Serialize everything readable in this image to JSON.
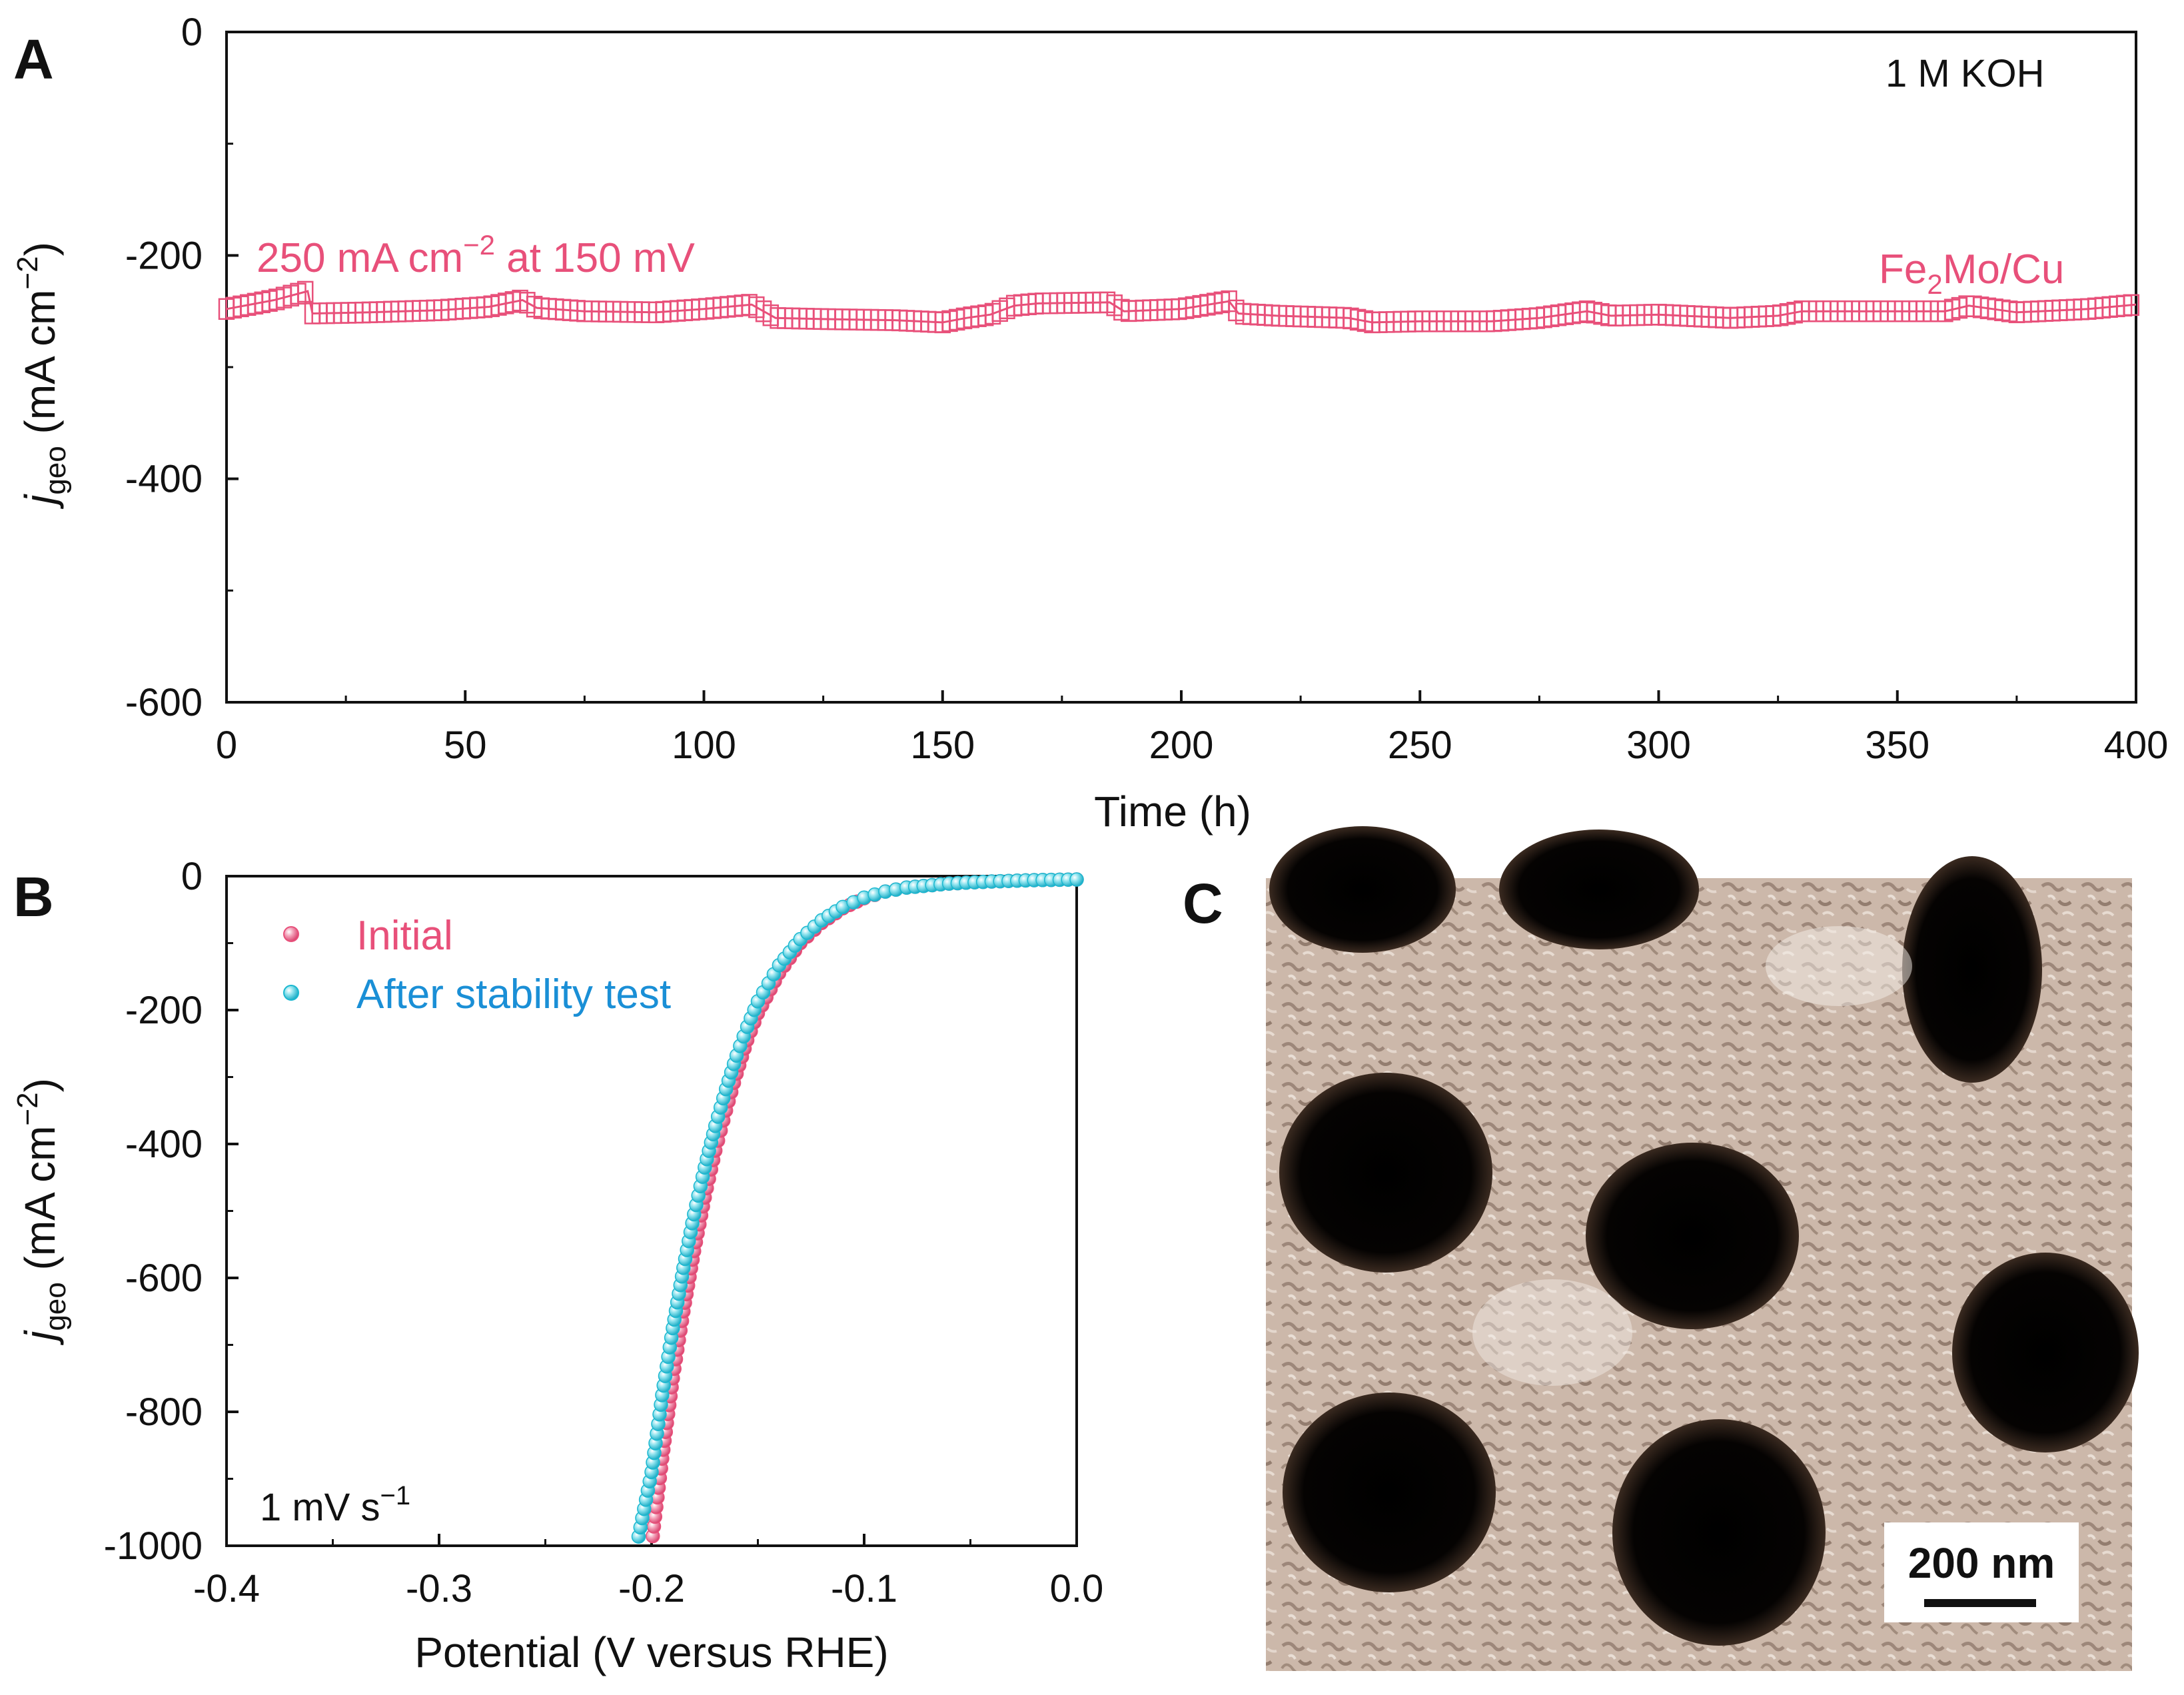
{
  "colors": {
    "pink": "#e8507a",
    "cyan": "#1bb8d0",
    "blue": "#1a8fd6",
    "axis": "#111111"
  },
  "chart_data": [
    {
      "panel": "A",
      "type": "line",
      "xlabel": "Time (h)",
      "ylabel_main": "j",
      "ylabel_sub": "geo",
      "ylabel_unit": " (mA cm",
      "ylabel_exp": "−2",
      "ylabel_close": ")",
      "xlim": [
        0,
        400
      ],
      "ylim": [
        -600,
        0
      ],
      "xticks": [
        "0",
        "50",
        "100",
        "150",
        "200",
        "250",
        "300",
        "350",
        "400"
      ],
      "yticks": [
        "0",
        "-200",
        "-400",
        "-600"
      ],
      "electrolyte": "1 M KOH",
      "condition_a": "250 mA cm",
      "condition_exp": "−2",
      "condition_b": " at 150 mV",
      "series_a": "Fe",
      "series_sub": "2",
      "series_b": "Mo/Cu",
      "series": [
        {
          "name": "Fe2Mo/Cu",
          "marker": "open-square",
          "x": [
            0,
            10,
            17,
            18,
            30,
            45,
            55,
            62,
            65,
            75,
            90,
            100,
            110,
            115,
            125,
            140,
            150,
            155,
            160,
            165,
            170,
            185,
            188,
            200,
            210,
            212,
            220,
            235,
            240,
            250,
            265,
            275,
            285,
            290,
            300,
            315,
            325,
            330,
            345,
            360,
            365,
            375,
            390,
            400
          ],
          "y": [
            -248,
            -240,
            -232,
            -252,
            -251,
            -249,
            -246,
            -240,
            -247,
            -250,
            -251,
            -248,
            -244,
            -256,
            -257,
            -258,
            -260,
            -256,
            -253,
            -245,
            -243,
            -242,
            -250,
            -248,
            -241,
            -252,
            -254,
            -256,
            -260,
            -259,
            -259,
            -256,
            -250,
            -254,
            -253,
            -256,
            -254,
            -250,
            -250,
            -250,
            -245,
            -251,
            -248,
            -244
          ]
        }
      ]
    },
    {
      "panel": "B",
      "type": "scatter",
      "xlabel": "Potential (V versus RHE)",
      "ylabel_main": "j",
      "ylabel_sub": "geo",
      "ylabel_unit": " (mA cm",
      "ylabel_exp": "−2",
      "ylabel_close": ")",
      "xlim": [
        -0.4,
        0.0
      ],
      "ylim": [
        -1000,
        0
      ],
      "xticks": [
        "-0.4",
        "-0.3",
        "-0.2",
        "-0.1",
        "0.0"
      ],
      "yticks": [
        "0",
        "-200",
        "-400",
        "-600",
        "-800",
        "-1000"
      ],
      "scan_a": "1 mV s",
      "scan_exp": "−1",
      "series": [
        {
          "name": "Initial",
          "x": [
            -0.2,
            -0.195,
            -0.19,
            -0.185,
            -0.18,
            -0.175,
            -0.17,
            -0.165,
            -0.16,
            -0.155,
            -0.15,
            -0.14,
            -0.13,
            -0.12,
            -0.11,
            -0.1,
            -0.09,
            -0.08,
            -0.06,
            -0.04,
            -0.02,
            0.0
          ],
          "y": [
            -1000,
            -870,
            -750,
            -650,
            -560,
            -480,
            -410,
            -350,
            -295,
            -245,
            -205,
            -145,
            -100,
            -70,
            -48,
            -33,
            -23,
            -17,
            -11,
            -8,
            -6,
            -5
          ]
        },
        {
          "name": "After stability test",
          "x": [
            -0.207,
            -0.2,
            -0.195,
            -0.19,
            -0.185,
            -0.18,
            -0.175,
            -0.17,
            -0.165,
            -0.16,
            -0.155,
            -0.15,
            -0.14,
            -0.13,
            -0.12,
            -0.11,
            -0.1,
            -0.09,
            -0.08,
            -0.06,
            -0.04,
            -0.02,
            0.0
          ],
          "y": [
            -1000,
            -890,
            -775,
            -675,
            -585,
            -505,
            -435,
            -373,
            -318,
            -268,
            -225,
            -187,
            -133,
            -94,
            -66,
            -46,
            -32,
            -23,
            -17,
            -11,
            -8,
            -6,
            -5
          ]
        }
      ]
    }
  ],
  "panel_c": {
    "letter": "C",
    "scale_bar": "200 nm"
  }
}
